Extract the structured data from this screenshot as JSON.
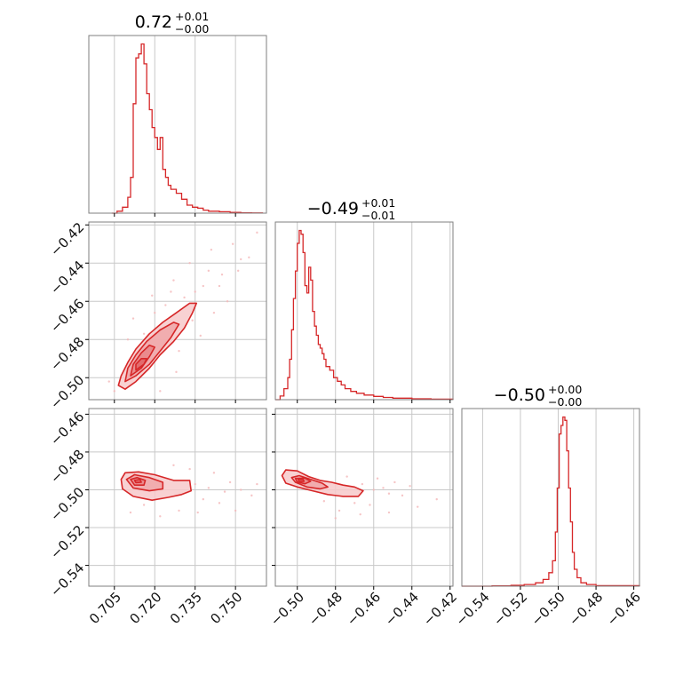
{
  "chart_data": {
    "type": "corner",
    "color": "#d62728",
    "parameters": [
      {
        "title": "0.72",
        "title_plus": "+0.01",
        "title_minus": "−0.00",
        "range": [
          0.6955,
          0.7615
        ],
        "ticks": [
          0.705,
          0.72,
          0.735,
          0.75
        ],
        "tick_labels": [
          "0.705",
          "0.720",
          "0.735",
          "0.750"
        ],
        "hist": {
          "x": [
            0.704,
            0.706,
            0.708,
            0.71,
            0.711,
            0.712,
            0.713,
            0.714,
            0.715,
            0.716,
            0.717,
            0.718,
            0.719,
            0.72,
            0.721,
            0.722,
            0.723,
            0.724,
            0.725,
            0.726,
            0.728,
            0.73,
            0.732,
            0.734,
            0.736,
            0.738,
            0.74,
            0.744,
            0.748,
            0.752,
            0.756,
            0.76
          ],
          "y": [
            0,
            1,
            3,
            8,
            18,
            55,
            78,
            80,
            85,
            75,
            60,
            52,
            43,
            38,
            32,
            38,
            22,
            18,
            14,
            12,
            10,
            7,
            4,
            3,
            2.5,
            1.5,
            1,
            0.7,
            0.4,
            0.2,
            0.1,
            0
          ]
        }
      },
      {
        "title": "−0.49",
        "title_plus": "+0.01",
        "title_minus": "−0.01",
        "range": [
          -0.5115,
          -0.4185
        ],
        "ticks": [
          -0.5,
          -0.48,
          -0.46,
          -0.44,
          -0.42
        ],
        "tick_labels": [
          "−0.50",
          "−0.48",
          "−0.46",
          "−0.44",
          "−0.42"
        ],
        "hist": {
          "x": [
            -0.5115,
            -0.509,
            -0.507,
            -0.505,
            -0.504,
            -0.503,
            -0.502,
            -0.501,
            -0.5,
            -0.499,
            -0.498,
            -0.497,
            -0.496,
            -0.495,
            -0.494,
            -0.493,
            -0.492,
            -0.491,
            -0.49,
            -0.489,
            -0.488,
            -0.487,
            -0.486,
            -0.485,
            -0.483,
            -0.481,
            -0.479,
            -0.477,
            -0.475,
            -0.472,
            -0.469,
            -0.465,
            -0.46,
            -0.455,
            -0.45,
            -0.44,
            -0.43,
            -0.4185
          ],
          "y": [
            0,
            2,
            6,
            12,
            22,
            38,
            55,
            70,
            85,
            92,
            90,
            80,
            62,
            58,
            72,
            65,
            48,
            40,
            35,
            30,
            28,
            25,
            22,
            18,
            16,
            12,
            10,
            8,
            6,
            4.5,
            3.5,
            2.5,
            1.8,
            1.2,
            0.8,
            0.5,
            0.3,
            0
          ]
        }
      },
      {
        "title": "−0.50",
        "title_plus": "+0.00",
        "title_minus": "−0.00",
        "range": [
          -0.551,
          -0.457
        ],
        "ticks": [
          -0.54,
          -0.52,
          -0.5,
          -0.48,
          -0.46
        ],
        "tick_labels": [
          "−0.54",
          "−0.52",
          "−0.50",
          "−0.48",
          "−0.46"
        ],
        "hist": {
          "x": [
            -0.551,
            -0.535,
            -0.525,
            -0.518,
            -0.512,
            -0.508,
            -0.505,
            -0.503,
            -0.5015,
            -0.5005,
            -0.4995,
            -0.4985,
            -0.4975,
            -0.4965,
            -0.4955,
            -0.4945,
            -0.4935,
            -0.4925,
            -0.4915,
            -0.49,
            -0.488,
            -0.485,
            -0.48,
            -0.457
          ],
          "y": [
            0,
            0.2,
            0.5,
            1,
            2,
            4,
            8,
            15,
            32,
            58,
            90,
            95,
            100,
            98,
            80,
            58,
            38,
            20,
            10,
            5,
            2,
            1,
            0.3,
            0
          ]
        }
      }
    ],
    "pairs": [
      {
        "x_param": 0,
        "y_param": 1,
        "contours": [
          [
            [
              0.7065,
              -0.504
            ],
            [
              0.709,
              -0.506
            ],
            [
              0.713,
              -0.502
            ],
            [
              0.718,
              -0.495
            ],
            [
              0.722,
              -0.488
            ],
            [
              0.727,
              -0.481
            ],
            [
              0.731,
              -0.474
            ],
            [
              0.734,
              -0.466
            ],
            [
              0.7355,
              -0.461
            ],
            [
              0.733,
              -0.461
            ],
            [
              0.728,
              -0.466
            ],
            [
              0.723,
              -0.471
            ],
            [
              0.718,
              -0.477
            ],
            [
              0.713,
              -0.485
            ],
            [
              0.71,
              -0.492
            ],
            [
              0.7075,
              -0.499
            ]
          ],
          [
            [
              0.709,
              -0.502
            ],
            [
              0.713,
              -0.499
            ],
            [
              0.718,
              -0.493
            ],
            [
              0.722,
              -0.486
            ],
            [
              0.726,
              -0.479
            ],
            [
              0.729,
              -0.472
            ],
            [
              0.727,
              -0.471
            ],
            [
              0.722,
              -0.475
            ],
            [
              0.717,
              -0.481
            ],
            [
              0.713,
              -0.488
            ],
            [
              0.71,
              -0.495
            ]
          ],
          [
            [
              0.711,
              -0.499
            ],
            [
              0.715,
              -0.495
            ],
            [
              0.718,
              -0.489
            ],
            [
              0.72,
              -0.484
            ],
            [
              0.718,
              -0.483
            ],
            [
              0.715,
              -0.487
            ],
            [
              0.712,
              -0.493
            ]
          ],
          [
            [
              0.713,
              -0.496
            ],
            [
              0.716,
              -0.493
            ],
            [
              0.717,
              -0.49
            ],
            [
              0.715,
              -0.49
            ],
            [
              0.713,
              -0.493
            ]
          ]
        ],
        "scatter": [
          [
            0.724,
            -0.462
          ],
          [
            0.731,
            -0.458
          ],
          [
            0.735,
            -0.455
          ],
          [
            0.727,
            -0.449
          ],
          [
            0.738,
            -0.452
          ],
          [
            0.74,
            -0.444
          ],
          [
            0.733,
            -0.44
          ],
          [
            0.745,
            -0.446
          ],
          [
            0.752,
            -0.438
          ],
          [
            0.742,
            -0.466
          ],
          [
            0.716,
            -0.477
          ],
          [
            0.712,
            -0.469
          ],
          [
            0.72,
            -0.466
          ],
          [
            0.729,
            -0.486
          ],
          [
            0.737,
            -0.478
          ],
          [
            0.705,
            -0.507
          ],
          [
            0.703,
            -0.502
          ],
          [
            0.722,
            -0.507
          ],
          [
            0.728,
            -0.497
          ],
          [
            0.747,
            -0.46
          ],
          [
            0.755,
            -0.437
          ],
          [
            0.758,
            -0.424
          ],
          [
            0.749,
            -0.43
          ],
          [
            0.719,
            -0.457
          ],
          [
            0.741,
            -0.433
          ],
          [
            0.71,
            -0.48
          ],
          [
            0.726,
            -0.455
          ],
          [
            0.734,
            -0.47
          ],
          [
            0.744,
            -0.452
          ],
          [
            0.751,
            -0.444
          ]
        ]
      },
      {
        "x_param": 0,
        "y_param": 2,
        "contours": [
          [
            [
              0.7075,
              -0.4945
            ],
            [
              0.709,
              -0.491
            ],
            [
              0.714,
              -0.4905
            ],
            [
              0.72,
              -0.492
            ],
            [
              0.727,
              -0.495
            ],
            [
              0.733,
              -0.495
            ],
            [
              0.7335,
              -0.5005
            ],
            [
              0.73,
              -0.5025
            ],
            [
              0.725,
              -0.504
            ],
            [
              0.719,
              -0.5055
            ],
            [
              0.712,
              -0.5035
            ],
            [
              0.708,
              -0.4995
            ]
          ],
          [
            [
              0.7095,
              -0.4945
            ],
            [
              0.7125,
              -0.492
            ],
            [
              0.718,
              -0.4935
            ],
            [
              0.723,
              -0.496
            ],
            [
              0.723,
              -0.4995
            ],
            [
              0.718,
              -0.5005
            ],
            [
              0.712,
              -0.499
            ]
          ],
          [
            [
              0.711,
              -0.4945
            ],
            [
              0.7135,
              -0.4935
            ],
            [
              0.7165,
              -0.495
            ],
            [
              0.716,
              -0.4975
            ],
            [
              0.7125,
              -0.4975
            ]
          ],
          [
            [
              0.7125,
              -0.495
            ],
            [
              0.7145,
              -0.4945
            ],
            [
              0.715,
              -0.496
            ],
            [
              0.713,
              -0.4962
            ]
          ]
        ],
        "scatter": [
          [
            0.735,
            -0.497
          ],
          [
            0.74,
            -0.499
          ],
          [
            0.746,
            -0.501
          ],
          [
            0.752,
            -0.5
          ],
          [
            0.756,
            -0.503
          ],
          [
            0.738,
            -0.505
          ],
          [
            0.729,
            -0.511
          ],
          [
            0.722,
            -0.514
          ],
          [
            0.716,
            -0.508
          ],
          [
            0.742,
            -0.491
          ],
          [
            0.733,
            -0.489
          ],
          [
            0.748,
            -0.496
          ],
          [
            0.727,
            -0.487
          ],
          [
            0.711,
            -0.512
          ],
          [
            0.744,
            -0.507
          ],
          [
            0.75,
            -0.511
          ],
          [
            0.758,
            -0.497
          ],
          [
            0.736,
            -0.512
          ]
        ]
      },
      {
        "x_param": 1,
        "y_param": 2,
        "contours": [
          [
            [
              -0.508,
              -0.4925
            ],
            [
              -0.506,
              -0.4895
            ],
            [
              -0.5,
              -0.49
            ],
            [
              -0.494,
              -0.493
            ],
            [
              -0.488,
              -0.495
            ],
            [
              -0.482,
              -0.496
            ],
            [
              -0.476,
              -0.4975
            ],
            [
              -0.47,
              -0.4985
            ],
            [
              -0.4655,
              -0.5005
            ],
            [
              -0.468,
              -0.5035
            ],
            [
              -0.476,
              -0.5035
            ],
            [
              -0.484,
              -0.5025
            ],
            [
              -0.492,
              -0.5005
            ],
            [
              -0.5,
              -0.4985
            ],
            [
              -0.506,
              -0.4965
            ]
          ],
          [
            [
              -0.503,
              -0.4935
            ],
            [
              -0.499,
              -0.4925
            ],
            [
              -0.493,
              -0.4945
            ],
            [
              -0.487,
              -0.4965
            ],
            [
              -0.484,
              -0.4985
            ],
            [
              -0.488,
              -0.4995
            ],
            [
              -0.495,
              -0.4985
            ],
            [
              -0.501,
              -0.496
            ]
          ],
          [
            [
              -0.501,
              -0.494
            ],
            [
              -0.496,
              -0.4938
            ],
            [
              -0.493,
              -0.4955
            ],
            [
              -0.496,
              -0.4968
            ],
            [
              -0.5,
              -0.4958
            ]
          ],
          [
            [
              -0.4995,
              -0.4945
            ],
            [
              -0.497,
              -0.4945
            ],
            [
              -0.4965,
              -0.4955
            ],
            [
              -0.499,
              -0.4957
            ]
          ]
        ],
        "scatter": [
          [
            -0.466,
            -0.497
          ],
          [
            -0.46,
            -0.5
          ],
          [
            -0.455,
            -0.499
          ],
          [
            -0.452,
            -0.502
          ],
          [
            -0.47,
            -0.507
          ],
          [
            -0.462,
            -0.508
          ],
          [
            -0.478,
            -0.511
          ],
          [
            -0.486,
            -0.506
          ],
          [
            -0.474,
            -0.493
          ],
          [
            -0.458,
            -0.494
          ],
          [
            -0.445,
            -0.503
          ],
          [
            -0.437,
            -0.509
          ],
          [
            -0.449,
            -0.496
          ],
          [
            -0.48,
            -0.515
          ],
          [
            -0.467,
            -0.513
          ],
          [
            -0.427,
            -0.505
          ],
          [
            -0.452,
            -0.512
          ],
          [
            -0.441,
            -0.498
          ]
        ]
      }
    ],
    "grid": true
  }
}
